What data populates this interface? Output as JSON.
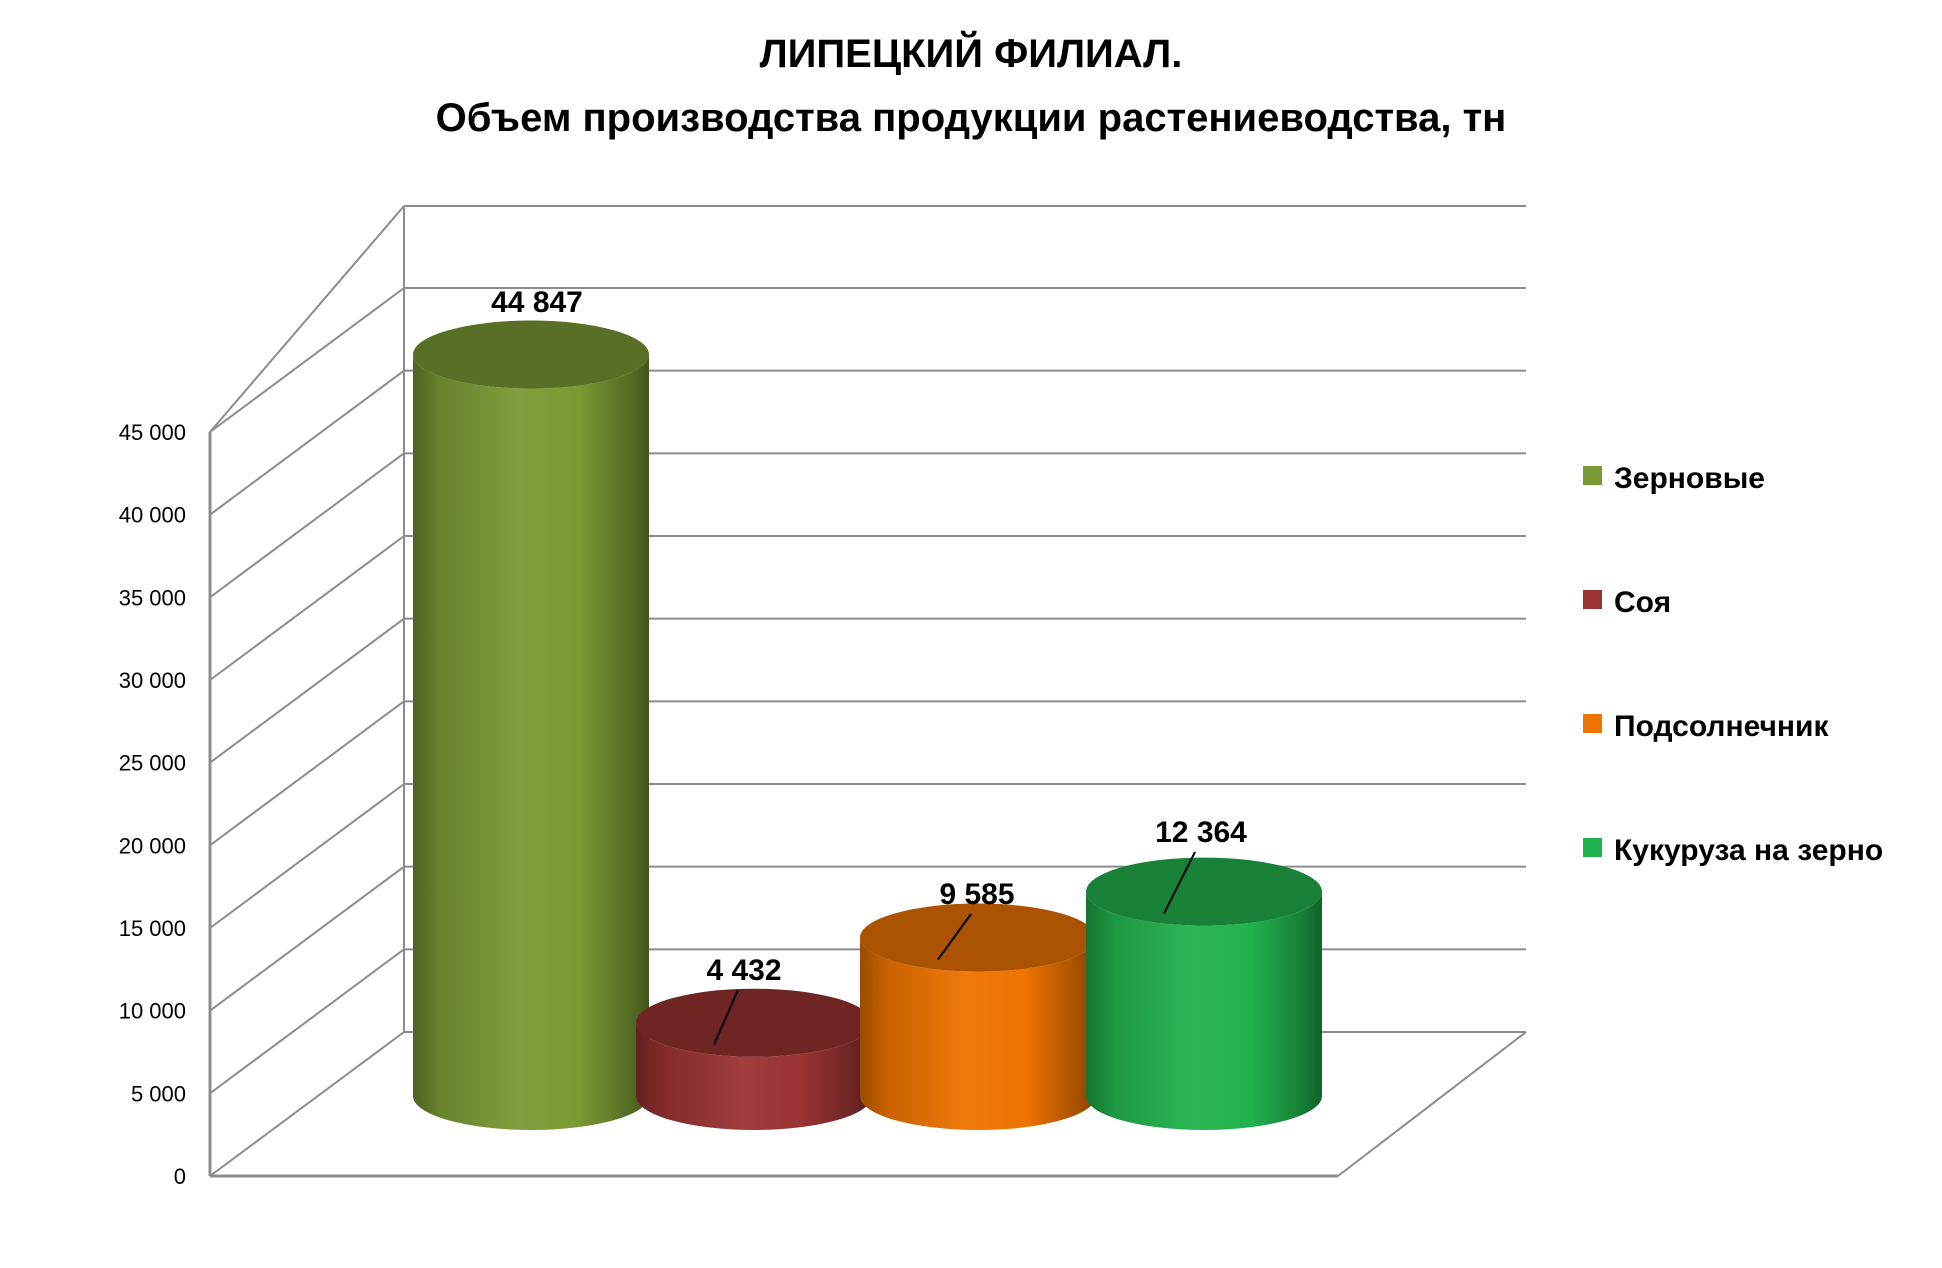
{
  "chart_data": {
    "type": "bar",
    "style": "3d-cylinder",
    "title": "ЛИПЕЦКИЙ ФИЛИАЛ.",
    "subtitle": "Объем производства продукции растениеводства, тн",
    "categories": [
      "Зерновые",
      "Соя",
      "Подсолнечник",
      "Кукуруза на зерно"
    ],
    "values": [
      44847,
      4432,
      9585,
      12364
    ],
    "value_labels": [
      "44 847",
      "4 432",
      "9 585",
      "12 364"
    ],
    "colors": [
      "#7a9a34",
      "#9b3333",
      "#ee7300",
      "#22b24c"
    ],
    "ylim": [
      0,
      45000
    ],
    "yticks": [
      0,
      5000,
      10000,
      15000,
      20000,
      25000,
      30000,
      35000,
      40000,
      45000
    ],
    "ytick_labels": [
      "0",
      "5 000",
      "10 000",
      "15 000",
      "20 000",
      "25 000",
      "30 000",
      "35 000",
      "40 000",
      "45 000"
    ],
    "grid": true,
    "legend_position": "right",
    "legend": [
      "Зерновые",
      "Соя",
      "Подсолнечник",
      "Кукуруза на зерно"
    ]
  }
}
